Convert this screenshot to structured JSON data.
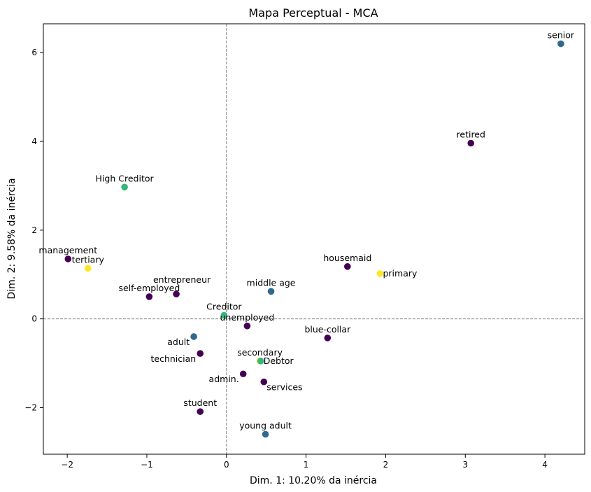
{
  "chart_data": {
    "type": "scatter",
    "title": "Mapa Perceptual - MCA",
    "xlabel": "Dim. 1: 10.20% da inércia",
    "ylabel": "Dim. 2: 9.58% da inércia",
    "xlim": [
      -2.3,
      4.5
    ],
    "ylim": [
      -3.05,
      6.65
    ],
    "xticks": [
      -2,
      -1,
      0,
      1,
      2,
      3,
      4
    ],
    "yticks": [
      -2,
      0,
      2,
      4,
      6
    ],
    "ytick_labels": [
      "−2",
      "0",
      "2",
      "4",
      "6"
    ],
    "xtick_labels": [
      "−2",
      "−1",
      "0",
      "1",
      "2",
      "3",
      "4"
    ],
    "reference_lines": {
      "x": 0,
      "y": 0,
      "style": "dashed",
      "color": "#808080"
    },
    "grid": false,
    "colors": {
      "job": "#440154",
      "age": "#31688e",
      "balance": "#35b779",
      "education": "#fde725"
    },
    "points": [
      {
        "label": "senior",
        "x": 4.2,
        "y": 6.2,
        "group": "age",
        "anchor": "middle",
        "pos": "above"
      },
      {
        "label": "retired",
        "x": 3.07,
        "y": 3.96,
        "group": "job",
        "anchor": "middle",
        "pos": "above"
      },
      {
        "label": "High Creditor",
        "x": -1.28,
        "y": 2.97,
        "group": "balance",
        "anchor": "middle",
        "pos": "above"
      },
      {
        "label": "management",
        "x": -1.99,
        "y": 1.35,
        "group": "job",
        "anchor": "middle",
        "pos": "above"
      },
      {
        "label": "tertiary",
        "x": -1.74,
        "y": 1.14,
        "group": "education",
        "anchor": "middle",
        "pos": "above"
      },
      {
        "label": "housemaid",
        "x": 1.52,
        "y": 1.18,
        "group": "job",
        "anchor": "middle",
        "pos": "above"
      },
      {
        "label": "primary",
        "x": 1.93,
        "y": 1.02,
        "group": "education",
        "anchor": "start",
        "pos": "right"
      },
      {
        "label": "entrepreneur",
        "x": -0.63,
        "y": 0.56,
        "group": "job",
        "anchor": "middle",
        "pos": "above-right"
      },
      {
        "label": "self-employed",
        "x": -0.97,
        "y": 0.5,
        "group": "job",
        "anchor": "middle",
        "pos": "above"
      },
      {
        "label": "middle age",
        "x": 0.56,
        "y": 0.62,
        "group": "age",
        "anchor": "middle",
        "pos": "above"
      },
      {
        "label": "Creditor",
        "x": -0.03,
        "y": 0.08,
        "group": "balance",
        "anchor": "middle",
        "pos": "above"
      },
      {
        "label": "unemployed",
        "x": 0.26,
        "y": -0.16,
        "group": "job",
        "anchor": "middle",
        "pos": "above-left"
      },
      {
        "label": "blue-collar",
        "x": 1.27,
        "y": -0.43,
        "group": "job",
        "anchor": "middle",
        "pos": "above"
      },
      {
        "label": "adult",
        "x": -0.41,
        "y": -0.4,
        "group": "age",
        "anchor": "end",
        "pos": "below-left"
      },
      {
        "label": "technician",
        "x": -0.33,
        "y": -0.78,
        "group": "job",
        "anchor": "end",
        "pos": "below-left"
      },
      {
        "label": "secondary",
        "x": 0.42,
        "y": -0.95,
        "group": "education",
        "anchor": "middle",
        "pos": "above"
      },
      {
        "label": "Debtor",
        "x": 0.43,
        "y": -0.95,
        "group": "balance",
        "anchor": "start",
        "pos": "right"
      },
      {
        "label": "admin.",
        "x": 0.21,
        "y": -1.24,
        "group": "job",
        "anchor": "end",
        "pos": "below-left"
      },
      {
        "label": "services",
        "x": 0.47,
        "y": -1.42,
        "group": "job",
        "anchor": "start",
        "pos": "below-right"
      },
      {
        "label": "student",
        "x": -0.33,
        "y": -2.09,
        "group": "job",
        "anchor": "middle",
        "pos": "above"
      },
      {
        "label": "young adult",
        "x": 0.49,
        "y": -2.6,
        "group": "age",
        "anchor": "middle",
        "pos": "above"
      }
    ]
  }
}
